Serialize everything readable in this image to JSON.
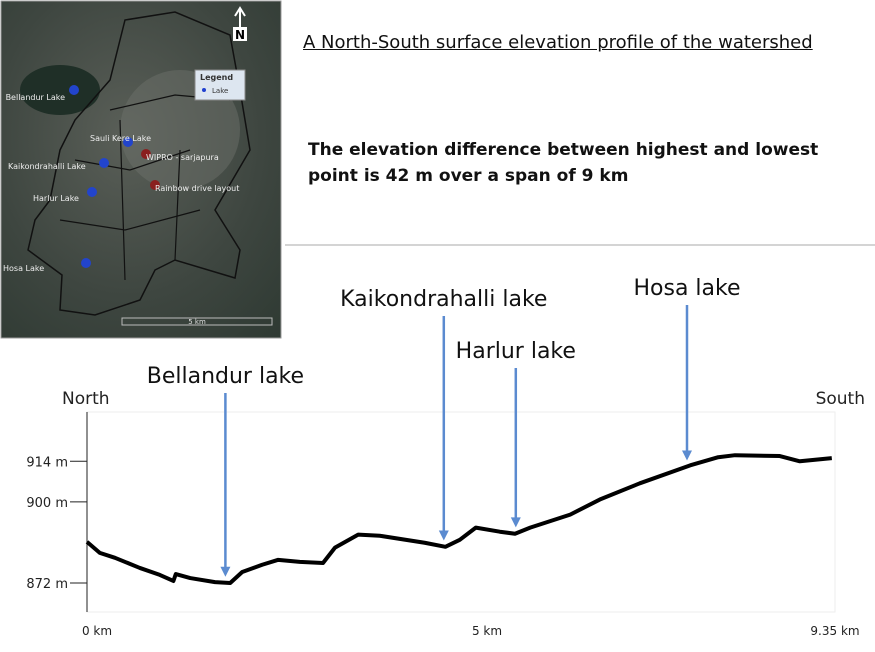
{
  "heading": "A North-South surface elevation profile of the watershed",
  "note": "The elevation difference between highest and lowest point is 42 m over a span of 9 km",
  "map": {
    "lakes": [
      "Bellandur Lake",
      "Sauli Kere Lake",
      "Kaikondrahalli Lake",
      "Harlur Lake",
      "Hosa Lake"
    ],
    "places": [
      "WIPRO - sarjapura",
      "Rainbow drive layout"
    ],
    "legend_title": "Legend",
    "legend_item": "Lake",
    "scale": "5 km",
    "north": "N"
  },
  "chart_data": {
    "type": "line",
    "start_label": "North",
    "end_label": "South",
    "x": [
      0,
      0.16,
      0.35,
      0.66,
      0.91,
      1.08,
      1.11,
      1.29,
      1.6,
      1.79,
      1.94,
      2.19,
      2.39,
      2.66,
      2.95,
      3.1,
      3.39,
      3.66,
      4.22,
      4.48,
      4.66,
      4.86,
      5.16,
      5.35,
      5.54,
      6.04,
      6.41,
      6.91,
      7.54,
      7.89,
      8.1,
      8.66,
      8.91,
      9.31
    ],
    "series": [
      {
        "color": "#000000",
        "values": [
          886.2,
          882.4,
          880.7,
          877.2,
          874.8,
          872.7,
          875.1,
          873.7,
          872.3,
          872,
          875.8,
          878.3,
          880,
          879.3,
          878.9,
          884.2,
          888.7,
          888.3,
          885.9,
          884.5,
          886.9,
          891.1,
          889.7,
          889,
          891.1,
          895.6,
          900.8,
          906.4,
          912.6,
          915.4,
          916.1,
          915.8,
          914,
          915.1
        ]
      }
    ],
    "xlim": [
      0,
      9.35
    ],
    "ylim": [
      862,
      931
    ],
    "xticks": [
      {
        "value": 0,
        "label": "0 km"
      },
      {
        "value": 5,
        "label": "5 km"
      },
      {
        "value": 9.35,
        "label": "9.35 km"
      }
    ],
    "yticks": [
      {
        "value": 872,
        "label": "872 m"
      },
      {
        "value": 900,
        "label": "900 m"
      },
      {
        "value": 914,
        "label": "914 m"
      }
    ],
    "annotations": [
      {
        "text": "Bellandur lake",
        "x": 1.73
      },
      {
        "text": "Kaikondrahalli lake",
        "x": 4.46
      },
      {
        "text": "Harlur lake",
        "x": 5.36
      },
      {
        "text": "Hosa lake",
        "x": 7.5
      }
    ],
    "annotation_color": "#5b8bd0"
  }
}
